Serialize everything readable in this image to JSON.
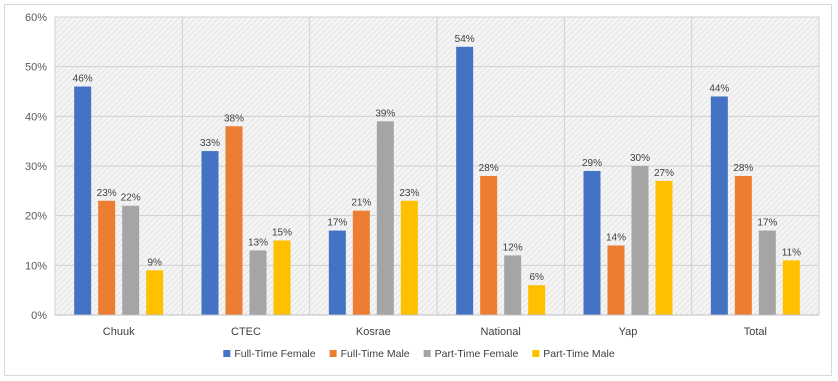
{
  "chart_data": {
    "type": "bar",
    "categories": [
      "Chuuk",
      "CTEC",
      "Kosrae",
      "National",
      "Yap",
      "Total"
    ],
    "series": [
      {
        "name": "Full-Time Female",
        "color": "#4472c4",
        "values": [
          46,
          33,
          17,
          54,
          29,
          44
        ],
        "labels": [
          "46%",
          "33%",
          "17%",
          "54%",
          "29%",
          "44%"
        ]
      },
      {
        "name": "Full-Time Male",
        "color": "#ed7d31",
        "values": [
          23,
          38,
          21,
          28,
          14,
          28
        ],
        "labels": [
          "23%",
          "38%",
          "21%",
          "28%",
          "14%",
          "28%"
        ]
      },
      {
        "name": "Part-Time Female",
        "color": "#a5a5a5",
        "values": [
          22,
          13,
          39,
          12,
          30,
          17
        ],
        "labels": [
          "22%",
          "13%",
          "39%",
          "12%",
          "30%",
          "17%"
        ]
      },
      {
        "name": "Part-Time Male",
        "color": "#ffc000",
        "values": [
          9,
          15,
          23,
          6,
          27,
          11
        ],
        "labels": [
          "9%",
          "15%",
          "23%",
          "6%",
          "27%",
          "11%"
        ]
      }
    ],
    "y_ticks": [
      0,
      10,
      20,
      30,
      40,
      50,
      60
    ],
    "y_tick_labels": [
      "0%",
      "10%",
      "20%",
      "30%",
      "40%",
      "50%",
      "60%"
    ],
    "ylim": [
      0,
      60
    ],
    "grid": true,
    "legend_position": "bottom"
  }
}
